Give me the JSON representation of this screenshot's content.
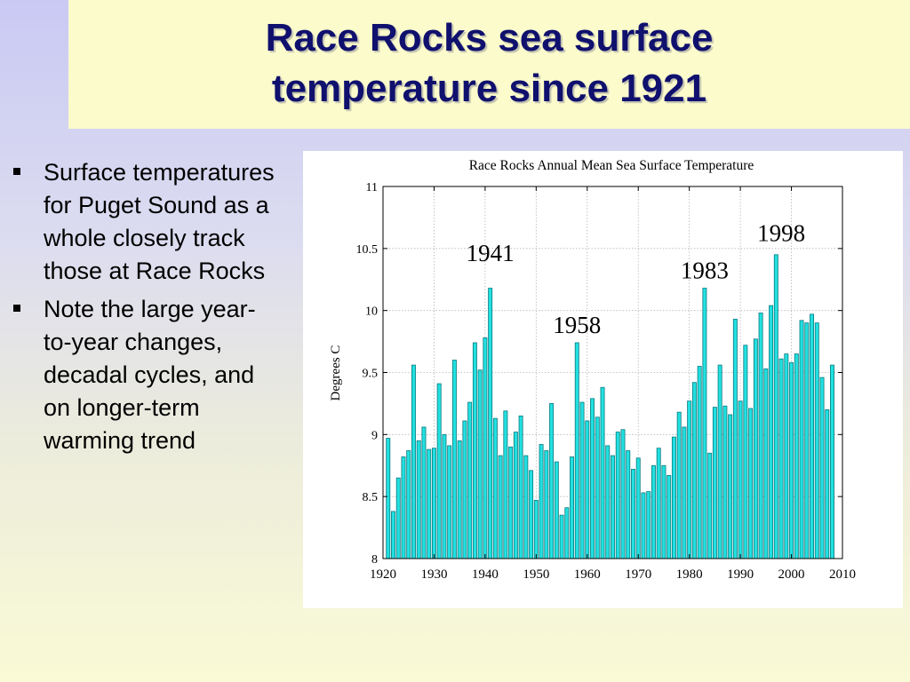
{
  "slide": {
    "title_line1": "Race Rocks sea surface",
    "title_line2": "temperature since 1921",
    "bullets": [
      "Surface temperatures for Puget Sound as a whole closely track those at Race Rocks",
      "Note the large year-to-year changes, decadal cycles, and on longer-term warming trend"
    ]
  },
  "colors": {
    "title_text": "#10106e",
    "title_box": "#fbfbcc",
    "bar_fill": "#22e0e0",
    "bar_stroke": "#0a7a80"
  },
  "chart_data": {
    "type": "bar",
    "title": "Race Rocks Annual Mean Sea Surface Temperature",
    "xlabel": "",
    "ylabel": "Degrees C",
    "xlim": [
      1920,
      2010
    ],
    "ylim": [
      8,
      11
    ],
    "xticks": [
      1920,
      1930,
      1940,
      1950,
      1960,
      1970,
      1980,
      1990,
      2000,
      2010
    ],
    "yticks": [
      8,
      8.5,
      9,
      9.5,
      10,
      10.5,
      11
    ],
    "grid": true,
    "x": [
      1921,
      1922,
      1923,
      1924,
      1925,
      1926,
      1927,
      1928,
      1929,
      1930,
      1931,
      1932,
      1933,
      1934,
      1935,
      1936,
      1937,
      1938,
      1939,
      1940,
      1941,
      1942,
      1943,
      1944,
      1945,
      1946,
      1947,
      1948,
      1949,
      1950,
      1951,
      1952,
      1953,
      1954,
      1955,
      1956,
      1957,
      1958,
      1959,
      1960,
      1961,
      1962,
      1963,
      1964,
      1965,
      1966,
      1967,
      1968,
      1969,
      1970,
      1971,
      1972,
      1973,
      1974,
      1975,
      1976,
      1977,
      1978,
      1979,
      1980,
      1981,
      1982,
      1983,
      1984,
      1985,
      1986,
      1987,
      1988,
      1989,
      1990,
      1991,
      1992,
      1993,
      1994,
      1995,
      1996,
      1997,
      1998,
      1999,
      2000,
      2001,
      2002,
      2003,
      2004,
      2005,
      2006,
      2007,
      2008
    ],
    "values": [
      8.97,
      8.38,
      8.65,
      8.82,
      8.87,
      9.56,
      8.95,
      9.06,
      8.88,
      8.89,
      9.41,
      9.0,
      8.91,
      9.6,
      8.95,
      9.11,
      9.26,
      9.74,
      9.52,
      9.78,
      10.18,
      9.13,
      8.83,
      9.19,
      8.9,
      9.02,
      9.15,
      8.83,
      8.71,
      8.47,
      8.92,
      8.87,
      9.25,
      8.78,
      8.35,
      8.41,
      8.82,
      9.74,
      9.26,
      9.11,
      9.29,
      9.14,
      9.38,
      8.91,
      8.83,
      9.02,
      9.04,
      8.87,
      8.72,
      8.81,
      8.53,
      8.54,
      8.75,
      8.89,
      8.75,
      8.67,
      8.98,
      9.18,
      9.06,
      9.27,
      9.42,
      9.55,
      10.18,
      8.85,
      9.22,
      9.56,
      9.23,
      9.16,
      9.93,
      9.27,
      9.72,
      9.21,
      9.77,
      9.98,
      9.53,
      10.04,
      10.45,
      9.61,
      9.65,
      9.58,
      9.65,
      9.92,
      9.9,
      9.97,
      9.9,
      9.46,
      9.2,
      9.56
    ],
    "annotations": [
      {
        "label": "1941",
        "x": 1941,
        "y": 10.4
      },
      {
        "label": "1958",
        "x": 1958,
        "y": 9.82
      },
      {
        "label": "1983",
        "x": 1983,
        "y": 10.26
      },
      {
        "label": "1998",
        "x": 1998,
        "y": 10.56
      }
    ]
  }
}
